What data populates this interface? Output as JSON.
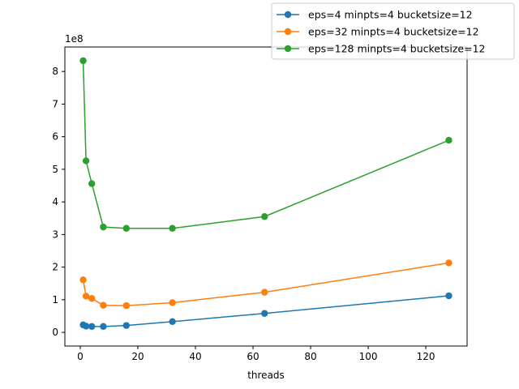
{
  "chart_data": {
    "type": "line",
    "title": "",
    "xlabel": "threads",
    "ylabel": "",
    "y_offset_label": "1e8",
    "xlim": [
      -5.35,
      134.35
    ],
    "ylim": [
      -0.42,
      8.75
    ],
    "xticks": [
      0,
      20,
      40,
      60,
      80,
      100,
      120
    ],
    "yticks": [
      0,
      1,
      2,
      3,
      4,
      5,
      6,
      7,
      8
    ],
    "grid": false,
    "legend_position": "upper-right-outside",
    "x": [
      1,
      2,
      4,
      8,
      16,
      32,
      64,
      128
    ],
    "series": [
      {
        "name": "eps=4 minpts=4 bucketsize=12",
        "color": "#1f77b4",
        "values": [
          0.23,
          0.19,
          0.18,
          0.18,
          0.21,
          0.33,
          0.58,
          1.12
        ]
      },
      {
        "name": "eps=32 minpts=4 bucketsize=12",
        "color": "#ff7f0e",
        "values": [
          1.61,
          1.11,
          1.04,
          0.83,
          0.82,
          0.91,
          1.23,
          2.13
        ]
      },
      {
        "name": "eps=128 minpts=4 bucketsize=12",
        "color": "#2ca02c",
        "values": [
          8.33,
          5.26,
          4.56,
          3.23,
          3.19,
          3.19,
          3.55,
          5.89
        ]
      }
    ]
  }
}
